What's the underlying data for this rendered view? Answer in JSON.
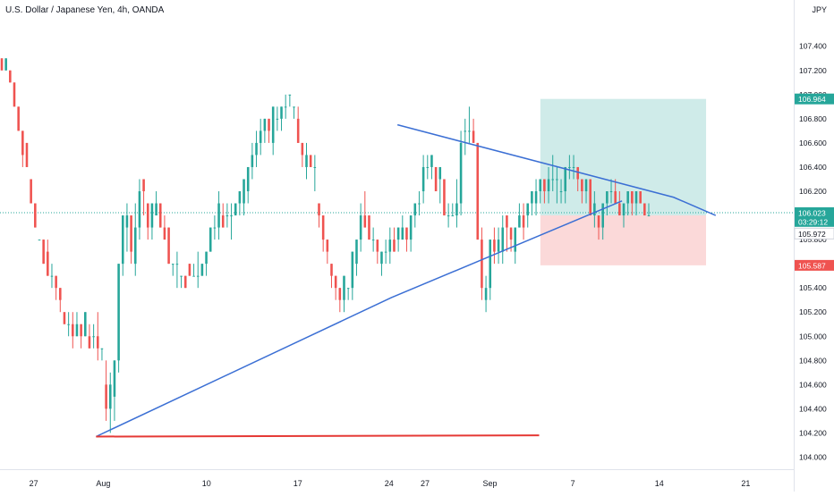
{
  "chart_data": {
    "type": "candlestick",
    "title": "U.S. Dollar / Japanese Yen, 4h, OANDA",
    "currency": "JPY",
    "ylim": [
      103.9,
      107.62
    ],
    "y_ticks": [
      "104.000",
      "104.200",
      "104.400",
      "104.600",
      "104.800",
      "105.000",
      "105.200",
      "105.400",
      "105.600",
      "105.800",
      "106.000",
      "106.200",
      "106.400",
      "106.600",
      "106.800",
      "107.000",
      "107.200",
      "107.400"
    ],
    "x_ticks": [
      {
        "label": "27",
        "x": -5.8
      },
      {
        "label": "Aug",
        "x": 0
      },
      {
        "label": "10",
        "x": 8.6
      },
      {
        "label": "17",
        "x": 16.2
      },
      {
        "label": "24",
        "x": 23.8
      },
      {
        "label": "27",
        "x": 26.8
      },
      {
        "label": "Sep",
        "x": 32.2
      },
      {
        "label": "7",
        "x": 39.1
      },
      {
        "label": "14",
        "x": 46.3
      },
      {
        "label": "21",
        "x": 53.5
      }
    ],
    "xlim": [
      -8.6,
      57.5
    ],
    "price_labels": [
      {
        "value": "106.964",
        "y": 106.964,
        "color": "#26a69a"
      },
      {
        "value": "106.023",
        "y": 106.023,
        "color": "#26a69a"
      },
      {
        "value": "03:29:12",
        "y": 105.95,
        "color": "#26a69a"
      },
      {
        "value": "105.972",
        "y": 105.85,
        "color": "#131722",
        "bg": "#ffffff"
      },
      {
        "value": "105.587",
        "y": 105.587,
        "color": "#ef5350"
      }
    ],
    "current_price": 106.023,
    "trendlines": [
      {
        "name": "upper",
        "color": "#3b6fd4",
        "points": [
          [
            24.5,
            106.75
          ],
          [
            47.5,
            106.15
          ],
          [
            51.0,
            106.0
          ]
        ]
      },
      {
        "name": "lower",
        "color": "#3b6fd4",
        "points": [
          [
            -0.6,
            104.17
          ],
          [
            24.0,
            105.32
          ],
          [
            43.2,
            106.12
          ]
        ]
      },
      {
        "name": "support",
        "color": "#e53935",
        "points": [
          [
            -0.6,
            104.17
          ],
          [
            36.3,
            104.18
          ]
        ]
      }
    ],
    "position": {
      "x_start": 36.4,
      "x_end": 50.2,
      "entry": 106.0,
      "target": 106.964,
      "stop": 105.587,
      "target_color": "#26a69a",
      "stop_color": "#ef5350"
    },
    "series": [
      {
        "name": "USDJPY",
        "values": [
          [
            107.3,
            107.3,
            107.2,
            107.2
          ],
          [
            107.2,
            107.3,
            107.2,
            107.3
          ],
          [
            107.2,
            107.2,
            107.1,
            107.1
          ],
          [
            107.1,
            107.1,
            106.9,
            106.9
          ],
          [
            106.9,
            106.9,
            106.7,
            106.7
          ],
          [
            106.7,
            106.7,
            106.4,
            106.5
          ],
          [
            106.6,
            106.6,
            106.4,
            106.4
          ],
          [
            106.3,
            106.3,
            106.1,
            106.1
          ],
          [
            106.1,
            106.1,
            105.9,
            105.9
          ],
          [
            105.8,
            105.8,
            105.8,
            105.8
          ],
          [
            105.8,
            105.8,
            105.6,
            105.6
          ],
          [
            105.7,
            105.8,
            105.5,
            105.5
          ],
          [
            105.5,
            105.6,
            105.4,
            105.5
          ],
          [
            105.5,
            105.5,
            105.3,
            105.4
          ],
          [
            105.4,
            105.4,
            105.2,
            105.3
          ],
          [
            105.2,
            105.2,
            105.1,
            105.1
          ],
          [
            105.1,
            105.2,
            105.0,
            105.1
          ],
          [
            105.1,
            105.2,
            104.9,
            105.0
          ],
          [
            105.0,
            105.2,
            105.0,
            105.1
          ],
          [
            105.1,
            105.1,
            104.9,
            105.0
          ],
          [
            105.0,
            105.2,
            105.0,
            105.2
          ],
          [
            105.0,
            105.1,
            104.9,
            104.9
          ],
          [
            105.0,
            105.1,
            104.9,
            105.0
          ],
          [
            105.0,
            105.2,
            104.8,
            104.9
          ],
          [
            104.9,
            104.9,
            104.8,
            104.9
          ],
          [
            104.6,
            104.8,
            104.3,
            104.4
          ],
          [
            104.4,
            104.7,
            104.2,
            104.6
          ],
          [
            104.5,
            104.8,
            104.3,
            104.8
          ],
          [
            104.8,
            105.6,
            104.7,
            105.6
          ],
          [
            105.6,
            106.0,
            105.5,
            106.0
          ],
          [
            105.9,
            106.1,
            105.7,
            106.0
          ],
          [
            106.0,
            106.0,
            105.6,
            105.7
          ],
          [
            105.6,
            106.1,
            105.5,
            105.9
          ],
          [
            105.9,
            106.3,
            105.8,
            106.2
          ],
          [
            106.3,
            106.3,
            106.0,
            106.2
          ],
          [
            106.1,
            106.1,
            105.8,
            105.9
          ],
          [
            105.9,
            106.1,
            105.8,
            106.1
          ],
          [
            106.0,
            106.2,
            106.0,
            106.1
          ],
          [
            106.1,
            106.1,
            105.9,
            105.9
          ],
          [
            105.9,
            106.0,
            105.8,
            105.8
          ],
          [
            105.9,
            105.9,
            105.6,
            105.6
          ],
          [
            105.6,
            105.6,
            105.5,
            105.6
          ],
          [
            105.6,
            105.7,
            105.4,
            105.6
          ],
          [
            105.5,
            105.5,
            105.4,
            105.5
          ],
          [
            105.5,
            105.5,
            105.4,
            105.4
          ],
          [
            105.6,
            105.6,
            105.5,
            105.5
          ],
          [
            105.5,
            105.6,
            105.5,
            105.5
          ],
          [
            105.5,
            105.7,
            105.4,
            105.5
          ],
          [
            105.5,
            105.6,
            105.5,
            105.6
          ],
          [
            105.6,
            105.7,
            105.5,
            105.7
          ],
          [
            105.7,
            105.9,
            105.7,
            105.9
          ],
          [
            105.9,
            106.0,
            105.8,
            105.9
          ],
          [
            105.9,
            106.2,
            105.8,
            106.1
          ],
          [
            106.0,
            106.1,
            105.9,
            105.9
          ],
          [
            106.0,
            106.1,
            105.9,
            106.0
          ],
          [
            106.0,
            106.1,
            105.8,
            106.0
          ],
          [
            106.0,
            106.1,
            106.0,
            106.1
          ],
          [
            106.1,
            106.2,
            106.0,
            106.2
          ],
          [
            106.1,
            106.3,
            106.0,
            106.3
          ],
          [
            106.2,
            106.4,
            106.1,
            106.4
          ],
          [
            106.4,
            106.6,
            106.3,
            106.5
          ],
          [
            106.5,
            106.7,
            106.4,
            106.6
          ],
          [
            106.6,
            106.8,
            106.5,
            106.7
          ],
          [
            106.7,
            106.8,
            106.6,
            106.8
          ],
          [
            106.8,
            106.8,
            106.6,
            106.7
          ],
          [
            106.6,
            106.9,
            106.5,
            106.9
          ],
          [
            106.8,
            106.9,
            106.7,
            106.8
          ],
          [
            106.8,
            106.9,
            106.7,
            106.9
          ],
          [
            106.9,
            107.0,
            106.8,
            106.9
          ],
          [
            107.0,
            107.0,
            106.9,
            107.0
          ],
          [
            106.9,
            106.9,
            106.8,
            106.9
          ],
          [
            106.8,
            106.9,
            106.6,
            106.6
          ],
          [
            106.6,
            106.6,
            106.4,
            106.5
          ],
          [
            106.4,
            106.6,
            106.3,
            106.5
          ],
          [
            106.5,
            106.5,
            106.4,
            106.4
          ],
          [
            106.4,
            106.5,
            106.2,
            106.4
          ],
          [
            106.1,
            106.1,
            105.9,
            106.0
          ],
          [
            106.0,
            106.0,
            105.7,
            105.8
          ],
          [
            105.8,
            105.8,
            105.6,
            105.7
          ],
          [
            105.6,
            105.6,
            105.4,
            105.5
          ],
          [
            105.5,
            105.5,
            105.3,
            105.4
          ],
          [
            105.4,
            105.4,
            105.2,
            105.3
          ],
          [
            105.3,
            105.5,
            105.2,
            105.5
          ],
          [
            105.4,
            105.4,
            105.3,
            105.4
          ],
          [
            105.4,
            105.7,
            105.3,
            105.7
          ],
          [
            105.6,
            105.8,
            105.5,
            105.8
          ],
          [
            105.8,
            106.1,
            105.7,
            106.0
          ],
          [
            106.0,
            106.2,
            105.9,
            105.9
          ],
          [
            106.0,
            106.0,
            105.8,
            105.8
          ],
          [
            105.8,
            105.9,
            105.7,
            105.8
          ],
          [
            105.8,
            105.8,
            105.6,
            105.7
          ],
          [
            105.6,
            105.7,
            105.5,
            105.7
          ],
          [
            105.7,
            105.8,
            105.6,
            105.7
          ],
          [
            105.7,
            105.9,
            105.6,
            105.8
          ],
          [
            105.8,
            105.9,
            105.7,
            105.7
          ],
          [
            105.8,
            105.9,
            105.7,
            105.9
          ],
          [
            105.8,
            106.0,
            105.8,
            105.9
          ],
          [
            105.9,
            105.9,
            105.7,
            105.8
          ],
          [
            105.8,
            106.0,
            105.7,
            106.0
          ],
          [
            106.0,
            106.1,
            105.9,
            106.1
          ],
          [
            106.1,
            106.2,
            106.0,
            106.1
          ],
          [
            106.2,
            106.5,
            106.1,
            106.4
          ],
          [
            106.4,
            106.5,
            106.3,
            106.4
          ],
          [
            106.4,
            106.5,
            106.3,
            106.5
          ],
          [
            106.4,
            106.4,
            106.2,
            106.2
          ],
          [
            106.3,
            106.4,
            106.1,
            106.4
          ],
          [
            106.3,
            106.3,
            106.0,
            106.0
          ],
          [
            106.0,
            106.1,
            105.9,
            106.0
          ],
          [
            106.0,
            106.1,
            106.0,
            106.0
          ],
          [
            106.0,
            106.3,
            105.9,
            106.1
          ],
          [
            106.1,
            106.7,
            106.0,
            106.6
          ],
          [
            106.7,
            106.8,
            106.5,
            106.7
          ],
          [
            106.7,
            106.9,
            106.6,
            106.7
          ],
          [
            106.7,
            106.8,
            106.6,
            106.6
          ],
          [
            106.6,
            106.6,
            105.8,
            105.8
          ],
          [
            105.8,
            105.9,
            105.3,
            105.4
          ],
          [
            105.3,
            105.5,
            105.2,
            105.4
          ],
          [
            105.4,
            105.8,
            105.3,
            105.8
          ],
          [
            105.8,
            105.9,
            105.6,
            105.7
          ],
          [
            105.7,
            105.9,
            105.6,
            105.8
          ],
          [
            105.7,
            106.0,
            105.6,
            105.9
          ],
          [
            106.0,
            106.0,
            105.7,
            105.9
          ],
          [
            105.9,
            105.9,
            105.7,
            105.8
          ],
          [
            105.7,
            105.9,
            105.6,
            105.9
          ],
          [
            105.9,
            106.1,
            105.9,
            106.0
          ],
          [
            106.0,
            106.1,
            105.8,
            105.9
          ],
          [
            106.0,
            106.1,
            105.9,
            106.1
          ],
          [
            106.1,
            106.2,
            106.0,
            106.2
          ],
          [
            106.1,
            106.3,
            106.0,
            106.2
          ],
          [
            106.2,
            106.3,
            106.1,
            106.3
          ],
          [
            106.3,
            106.3,
            106.1,
            106.2
          ],
          [
            106.2,
            106.4,
            106.1,
            106.3
          ],
          [
            106.3,
            106.5,
            106.2,
            106.3
          ],
          [
            106.3,
            106.4,
            106.1,
            106.3
          ],
          [
            106.2,
            106.3,
            106.1,
            106.2
          ],
          [
            106.2,
            106.4,
            106.1,
            106.4
          ],
          [
            106.4,
            106.5,
            106.3,
            106.4
          ],
          [
            106.4,
            106.5,
            106.3,
            106.4
          ],
          [
            106.4,
            106.4,
            106.2,
            106.3
          ],
          [
            106.3,
            106.3,
            106.1,
            106.2
          ],
          [
            106.2,
            106.3,
            106.1,
            106.3
          ],
          [
            106.3,
            106.3,
            106.0,
            106.0
          ],
          [
            106.0,
            106.2,
            105.9,
            106.1
          ],
          [
            106.0,
            106.0,
            105.8,
            105.9
          ],
          [
            105.9,
            106.1,
            105.8,
            106.1
          ],
          [
            106.1,
            106.2,
            106.0,
            106.2
          ],
          [
            106.2,
            106.3,
            106.1,
            106.2
          ],
          [
            106.2,
            106.3,
            106.1,
            106.1
          ],
          [
            106.1,
            106.2,
            106.0,
            106.0
          ],
          [
            106.0,
            106.1,
            105.9,
            106.1
          ],
          [
            106.1,
            106.2,
            106.0,
            106.2
          ],
          [
            106.2,
            106.2,
            106.0,
            106.1
          ],
          [
            106.1,
            106.2,
            106.0,
            106.2
          ],
          [
            106.2,
            106.2,
            106.1,
            106.1
          ],
          [
            106.1,
            106.1,
            106.0,
            106.0
          ],
          [
            106.0,
            106.1,
            106.0,
            106.0
          ]
        ]
      }
    ]
  }
}
